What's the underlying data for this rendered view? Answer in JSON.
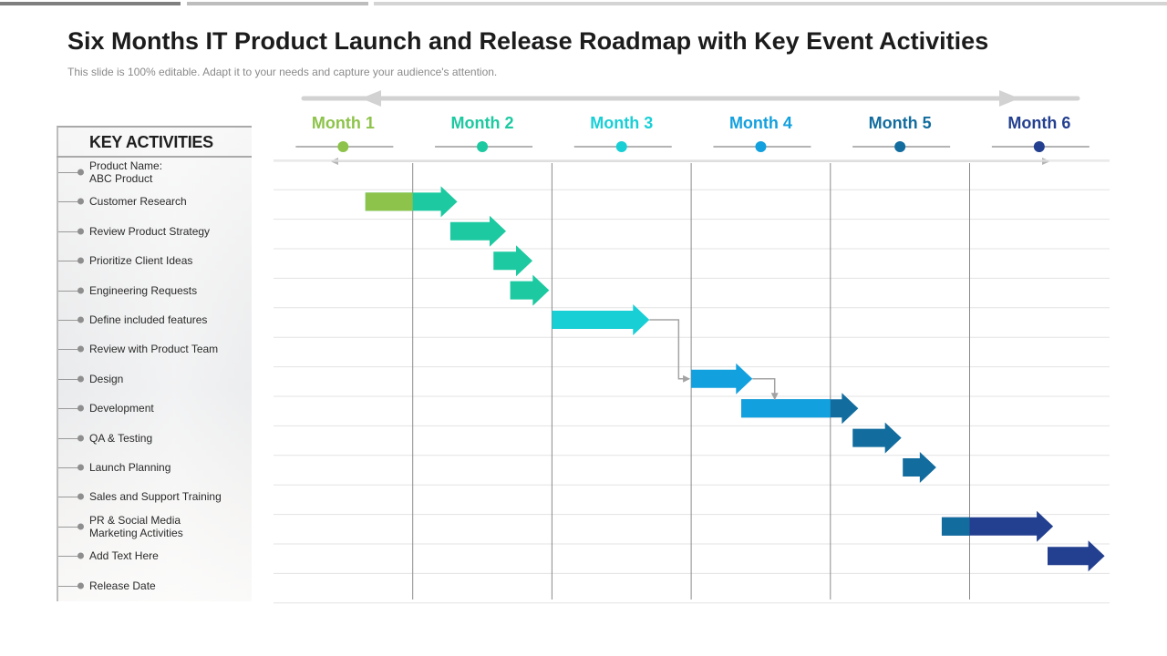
{
  "header": {
    "title": "Six Months IT Product Launch and Release Roadmap with Key Event Activities",
    "subtitle": "This slide is 100% editable. Adapt it to your needs and capture your audience's attention."
  },
  "panel": {
    "title": "KEY ACTIVITIES"
  },
  "months": [
    {
      "label": "Month 1",
      "color": "#8dc34a"
    },
    {
      "label": "Month 2",
      "color": "#1cc9a0"
    },
    {
      "label": "Month 3",
      "color": "#19cfd6"
    },
    {
      "label": "Month 4",
      "color": "#13a0de"
    },
    {
      "label": "Month 5",
      "color": "#126c9e"
    },
    {
      "label": "Month 6",
      "color": "#233f8f"
    }
  ],
  "activities": [
    {
      "label": "Product Name:\nABC Product"
    },
    {
      "label": "Customer Research"
    },
    {
      "label": "Review Product Strategy"
    },
    {
      "label": "Prioritize Client Ideas"
    },
    {
      "label": "Engineering Requests"
    },
    {
      "label": "Define included features"
    },
    {
      "label": "Review with Product Team"
    },
    {
      "label": "Design"
    },
    {
      "label": "Development"
    },
    {
      "label": "QA  & Testing"
    },
    {
      "label": "Launch Planning"
    },
    {
      "label": "Sales and Support Training"
    },
    {
      "label": "PR & Social Media\nMarketing Activities"
    },
    {
      "label": "Add Text Here"
    },
    {
      "label": "Release Date"
    }
  ],
  "bars": [
    {
      "row": 1,
      "start": 0.66,
      "end": 1.32,
      "color": "#1cc9a0",
      "tail_end": 1.0,
      "tail_color": "#8dc34a"
    },
    {
      "row": 2,
      "start": 1.27,
      "end": 1.67,
      "color": "#1cc9a0"
    },
    {
      "row": 3,
      "start": 1.58,
      "end": 1.86,
      "color": "#1cc9a0"
    },
    {
      "row": 4,
      "start": 1.7,
      "end": 1.98,
      "color": "#1cc9a0"
    },
    {
      "row": 5,
      "start": 2.0,
      "end": 2.7,
      "color": "#19cfd6"
    },
    {
      "row": 7,
      "start": 3.0,
      "end": 3.44,
      "color": "#13a0de"
    },
    {
      "row": 8,
      "start": 3.36,
      "end": 4.2,
      "color": "#126c9e",
      "tail_end": 4.0,
      "tail_color": "#13a0de"
    },
    {
      "row": 9,
      "start": 4.16,
      "end": 4.51,
      "color": "#126c9e"
    },
    {
      "row": 10,
      "start": 4.52,
      "end": 4.76,
      "color": "#126c9e"
    },
    {
      "row": 12,
      "start": 4.8,
      "end": 5.6,
      "color": "#233f8f",
      "tail_end": 5.0,
      "tail_color": "#126c9e"
    },
    {
      "row": 13,
      "start": 5.56,
      "end": 5.97,
      "color": "#233f8f"
    }
  ]
}
